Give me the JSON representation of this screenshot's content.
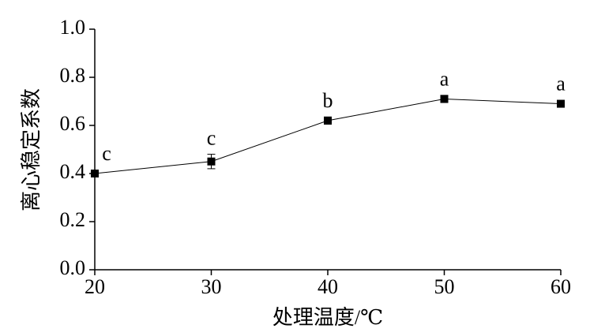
{
  "chart_data": {
    "type": "line",
    "x_label": "处理温度/℃",
    "y_label": "离心稳定系数",
    "x": [
      20,
      30,
      40,
      50,
      60
    ],
    "values": [
      0.4,
      0.45,
      0.62,
      0.71,
      0.69
    ],
    "errors": [
      0.005,
      0.03,
      0.015,
      0.015,
      0.01
    ],
    "annotations": [
      "c",
      "c",
      "b",
      "a",
      "a"
    ],
    "color": "#000000",
    "xlim": [
      20,
      60
    ],
    "xticks": [
      20,
      30,
      40,
      50,
      60
    ],
    "ylim": [
      0,
      1
    ],
    "yticks": [
      {
        "value": 0,
        "label": "0.0"
      },
      0.2,
      0.4,
      0.6,
      0.8,
      {
        "value": 1,
        "label": "1.0"
      }
    ]
  }
}
